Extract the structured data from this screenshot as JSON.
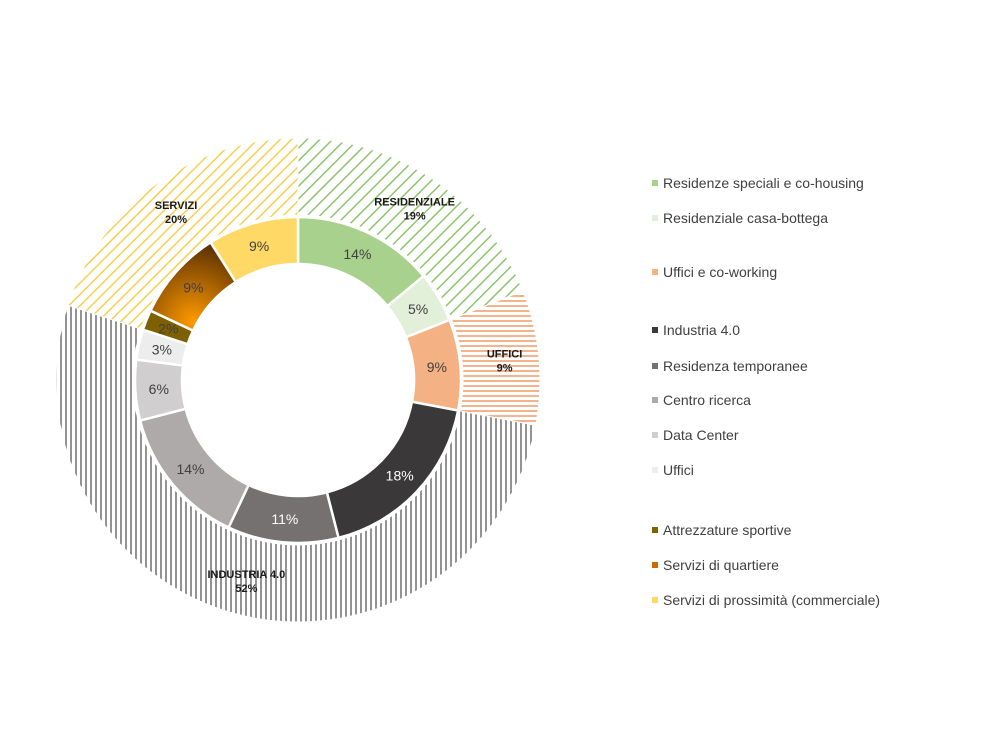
{
  "chart_data": {
    "type": "pie",
    "subtype": "nested-donut",
    "outer_ring": [
      {
        "name": "RESIDENZIALE",
        "value": 19,
        "label": "19%",
        "color": "#8fc46e",
        "pattern": "diagonal-hatch"
      },
      {
        "name": "UFFICI",
        "value": 9,
        "label": "9%",
        "color": "#f0a070",
        "pattern": "horizontal-lines"
      },
      {
        "name": "INDUSTRIA 4.0",
        "value": 52,
        "label": "52%",
        "color": "#595959",
        "pattern": "vertical-lines"
      },
      {
        "name": "SERVIZI",
        "value": 20,
        "label": "20%",
        "color": "#f5d050",
        "pattern": "diagonal-hatch"
      }
    ],
    "inner_ring": [
      {
        "name": "Residenze speciali e co-housing",
        "value": 14,
        "label": "14%",
        "color": "#a9d18e",
        "text_color": "#404040"
      },
      {
        "name": "Residenziale casa-bottega",
        "value": 5,
        "label": "5%",
        "color": "#e2efd9",
        "text_color": "#404040"
      },
      {
        "name": "Uffici e co-working",
        "value": 9,
        "label": "9%",
        "color": "#f4b183",
        "text_color": "#404040"
      },
      {
        "name": "Industria 4.0",
        "value": 18,
        "label": "18%",
        "color": "#3a3838",
        "text_color": "#ffffff"
      },
      {
        "name": "Residenza temporanee",
        "value": 11,
        "label": "11%",
        "color": "#757171",
        "text_color": "#ffffff"
      },
      {
        "name": "Centro ricerca",
        "value": 14,
        "label": "14%",
        "color": "#aeaaaa",
        "text_color": "#404040"
      },
      {
        "name": "Data Center",
        "value": 6,
        "label": "6%",
        "color": "#d0cece",
        "text_color": "#404040"
      },
      {
        "name": "Uffici",
        "value": 3,
        "label": "3%",
        "color": "#ededed",
        "text_color": "#404040"
      },
      {
        "name": "Attrezzature sportive",
        "value": 2,
        "label": "2%",
        "color": "#7f6000",
        "text_color": "#404040"
      },
      {
        "name": "Servizi di quartiere",
        "value": 9,
        "label": "9%",
        "color": "#e08a00",
        "gradient_to": "#6b3a00",
        "text_color": "#404040"
      },
      {
        "name": "Servizi di prossimità (commerciale)",
        "value": 9,
        "label": "9%",
        "color": "#ffd966",
        "text_color": "#404040"
      }
    ],
    "legend_position": "right",
    "title": ""
  }
}
